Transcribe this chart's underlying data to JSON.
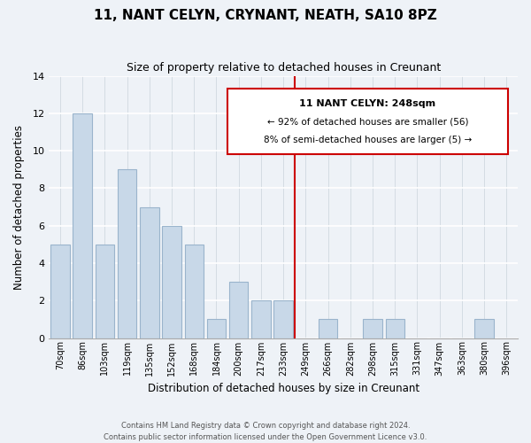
{
  "title": "11, NANT CELYN, CRYNANT, NEATH, SA10 8PZ",
  "subtitle": "Size of property relative to detached houses in Creunant",
  "xlabel": "Distribution of detached houses by size in Creunant",
  "ylabel": "Number of detached properties",
  "bar_labels": [
    "70sqm",
    "86sqm",
    "103sqm",
    "119sqm",
    "135sqm",
    "152sqm",
    "168sqm",
    "184sqm",
    "200sqm",
    "217sqm",
    "233sqm",
    "249sqm",
    "266sqm",
    "282sqm",
    "298sqm",
    "315sqm",
    "331sqm",
    "347sqm",
    "363sqm",
    "380sqm",
    "396sqm"
  ],
  "bar_values": [
    5,
    12,
    5,
    9,
    7,
    6,
    5,
    1,
    3,
    2,
    2,
    0,
    1,
    0,
    1,
    1,
    0,
    0,
    0,
    1,
    0
  ],
  "bar_color": "#c8d8e8",
  "bar_edge_color": "#9ab4cc",
  "vline_x": 10.5,
  "vline_color": "#cc0000",
  "annotation_title": "11 NANT CELYN: 248sqm",
  "annotation_line1": "← 92% of detached houses are smaller (56)",
  "annotation_line2": "8% of semi-detached houses are larger (5) →",
  "ylim": [
    0,
    14
  ],
  "yticks": [
    0,
    2,
    4,
    6,
    8,
    10,
    12,
    14
  ],
  "footer_line1": "Contains HM Land Registry data © Crown copyright and database right 2024.",
  "footer_line2": "Contains public sector information licensed under the Open Government Licence v3.0.",
  "background_color": "#eef2f7"
}
